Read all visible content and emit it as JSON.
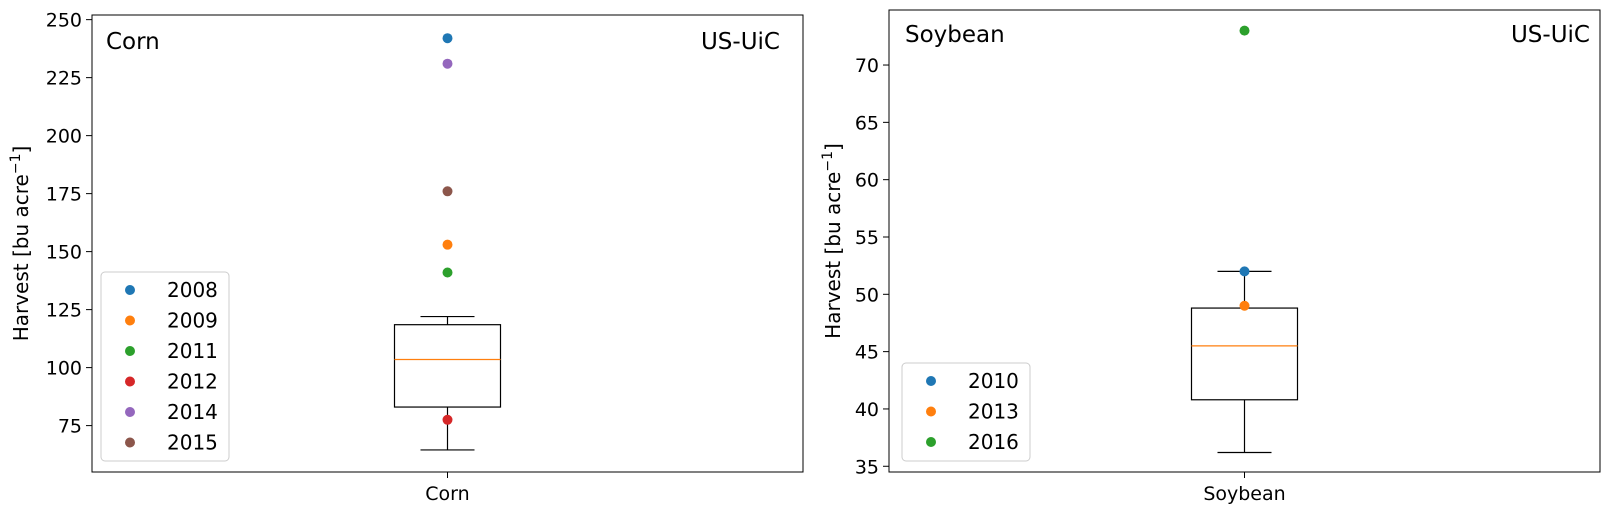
{
  "chart_data": [
    {
      "type": "box",
      "category": "Corn",
      "corner_left": "Corn",
      "corner_right": "US-UiC",
      "ylabel": "Harvest [bu acre",
      "ylabel_sup": "−1",
      "ylabel_close": "]",
      "ylim": [
        55,
        252
      ],
      "yticks": [
        75,
        100,
        125,
        150,
        175,
        200,
        225,
        250
      ],
      "box": {
        "whisker_low": 64.5,
        "q1": 83,
        "median": 103.5,
        "q3": 118.5,
        "whisker_high": 122
      },
      "series": [
        {
          "name": "2008",
          "value": 242,
          "color": "#1f77b4"
        },
        {
          "name": "2009",
          "value": 153,
          "color": "#ff7f0e"
        },
        {
          "name": "2011",
          "value": 141,
          "color": "#2ca02c"
        },
        {
          "name": "2012",
          "value": 77.5,
          "color": "#d62728"
        },
        {
          "name": "2014",
          "value": 231,
          "color": "#9467bd"
        },
        {
          "name": "2015",
          "value": 176,
          "color": "#8c564b"
        }
      ],
      "legend": "lower-left",
      "grid": false
    },
    {
      "type": "box",
      "category": "Soybean",
      "corner_left": "Soybean",
      "corner_right": "US-UiC",
      "ylabel": "Harvest [bu acre",
      "ylabel_sup": "−1",
      "ylabel_close": "]",
      "ylim": [
        34.5,
        74.8
      ],
      "yticks": [
        35,
        40,
        45,
        50,
        55,
        60,
        65,
        70
      ],
      "box": {
        "whisker_low": 36.2,
        "q1": 40.8,
        "median": 45.5,
        "q3": 48.8,
        "whisker_high": 52
      },
      "series": [
        {
          "name": "2010",
          "value": 52,
          "color": "#1f77b4"
        },
        {
          "name": "2013",
          "value": 49,
          "color": "#ff7f0e"
        },
        {
          "name": "2016",
          "value": 73,
          "color": "#2ca02c"
        }
      ],
      "legend": "lower-left",
      "grid": false
    }
  ],
  "colors": {
    "median": "#ff7f0e",
    "box": "#000000",
    "legend_frame": "#cccccc"
  }
}
